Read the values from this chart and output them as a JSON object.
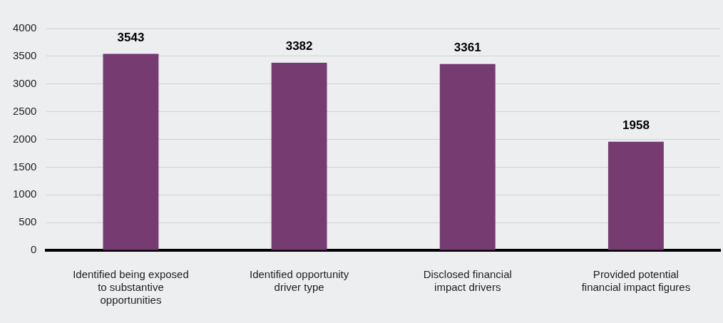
{
  "chart_data": {
    "type": "bar",
    "categories": [
      "Identified being exposed to substantive opportunities",
      "Identified opportunity driver type",
      "Disclosed financial impact drivers",
      "Provided potential financial impact figures"
    ],
    "values": [
      3543,
      3382,
      3361,
      1958
    ],
    "color": "#763c72",
    "ylim": [
      0,
      4000
    ],
    "yticks": [
      0,
      500,
      1000,
      1500,
      2000,
      2500,
      3000,
      3500,
      4000
    ],
    "grid": "y",
    "legend": false,
    "data_labels": true
  }
}
